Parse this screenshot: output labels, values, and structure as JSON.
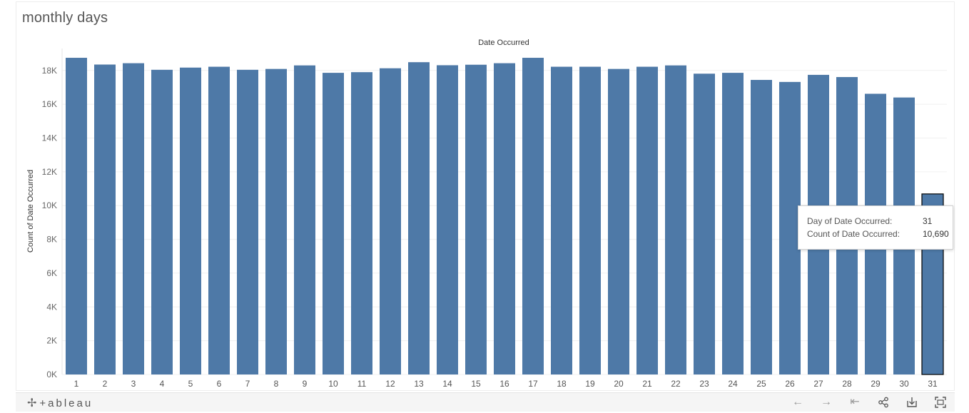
{
  "title": "monthly days",
  "chart_data": {
    "type": "bar",
    "title": "monthly days",
    "column_header": "Date Occurred",
    "xlabel": "",
    "ylabel": "Count of Date Occurred",
    "categories": [
      "1",
      "2",
      "3",
      "4",
      "5",
      "6",
      "7",
      "8",
      "9",
      "10",
      "11",
      "12",
      "13",
      "14",
      "15",
      "16",
      "17",
      "18",
      "19",
      "20",
      "21",
      "22",
      "23",
      "24",
      "25",
      "26",
      "27",
      "28",
      "29",
      "30",
      "31"
    ],
    "values": [
      18750,
      18350,
      18430,
      18040,
      18170,
      18220,
      18040,
      18090,
      18300,
      17860,
      17900,
      18130,
      18490,
      18310,
      18340,
      18430,
      18750,
      18220,
      18220,
      18090,
      18220,
      18300,
      17810,
      17860,
      17440,
      17320,
      17740,
      17610,
      16620,
      16400,
      10690
    ],
    "ylim": [
      0,
      19300
    ],
    "yticks": [
      0,
      2000,
      4000,
      6000,
      8000,
      10000,
      12000,
      14000,
      16000,
      18000
    ],
    "ytick_labels": [
      "0K",
      "2K",
      "4K",
      "6K",
      "8K",
      "10K",
      "12K",
      "14K",
      "16K",
      "18K"
    ],
    "grid": true,
    "bar_color": "#4e79a7",
    "highlighted_category": "31"
  },
  "tooltip": {
    "label1": "Day of Date Occurred:",
    "value1": "31",
    "label2": "Count of Date Occurred:",
    "value2": "10,690"
  },
  "toolbar": {
    "brand": "+ableau",
    "brand_icon": "tableau-logo-icon",
    "buttons": [
      "undo-icon",
      "redo-icon",
      "revert-icon",
      "share-icon",
      "download-icon",
      "fullscreen-icon"
    ]
  }
}
